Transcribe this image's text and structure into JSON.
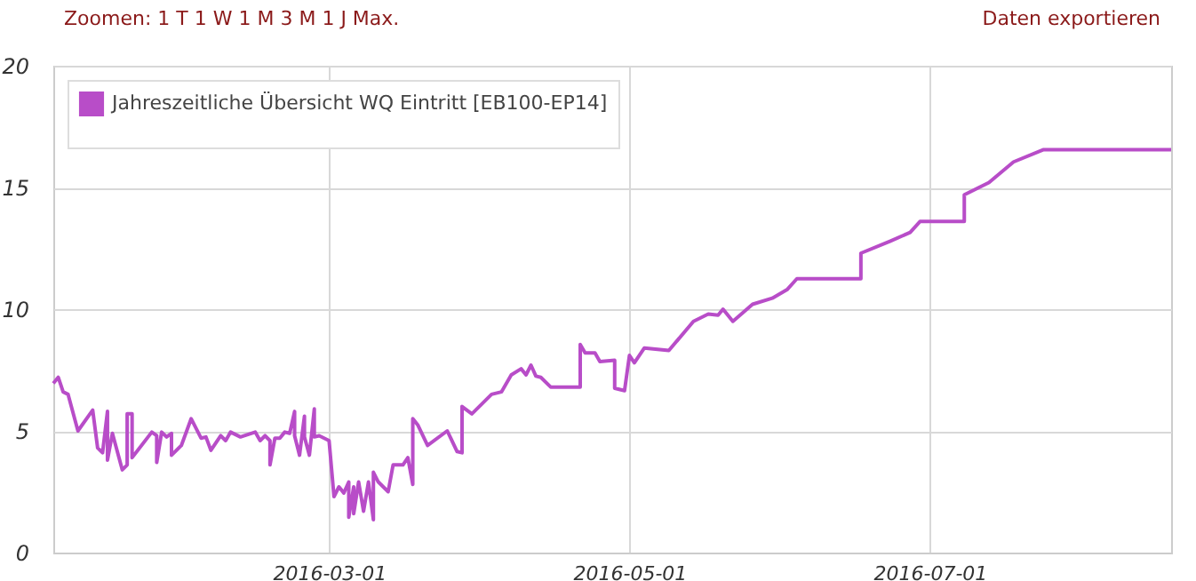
{
  "chart_data": {
    "type": "line",
    "annotations": [
      "Zoomen: 1 T 1 W 1 M 3 M 1 J Max.",
      "Daten exportieren"
    ],
    "x": [
      "2016-01-05",
      "2016-01-06",
      "2016-01-07",
      "2016-01-08",
      "2016-01-10",
      "2016-01-13",
      "2016-01-14",
      "2016-01-15",
      "2016-01-16",
      "2016-01-16",
      "2016-01-17",
      "2016-01-19",
      "2016-01-20",
      "2016-01-20",
      "2016-01-21",
      "2016-01-21",
      "2016-01-25",
      "2016-01-26",
      "2016-01-26",
      "2016-01-27",
      "2016-01-28",
      "2016-01-29",
      "2016-01-29",
      "2016-01-31",
      "2016-02-02",
      "2016-02-04",
      "2016-02-05",
      "2016-02-06",
      "2016-02-08",
      "2016-02-09",
      "2016-02-10",
      "2016-02-12",
      "2016-02-15",
      "2016-02-16",
      "2016-02-17",
      "2016-02-18",
      "2016-02-18",
      "2016-02-19",
      "2016-02-20",
      "2016-02-21",
      "2016-02-22",
      "2016-02-23",
      "2016-02-23",
      "2016-02-24",
      "2016-02-25",
      "2016-02-25",
      "2016-02-26",
      "2016-02-27",
      "2016-02-27",
      "2016-02-28",
      "2016-03-01",
      "2016-03-02",
      "2016-03-03",
      "2016-03-04",
      "2016-03-05",
      "2016-03-05",
      "2016-03-06",
      "2016-03-06",
      "2016-03-07",
      "2016-03-08",
      "2016-03-09",
      "2016-03-10",
      "2016-03-10",
      "2016-03-11",
      "2016-03-13",
      "2016-03-14",
      "2016-03-16",
      "2016-03-17",
      "2016-03-18",
      "2016-03-18",
      "2016-03-19",
      "2016-03-21",
      "2016-03-25",
      "2016-03-27",
      "2016-03-28",
      "2016-03-28",
      "2016-03-30",
      "2016-04-03",
      "2016-04-05",
      "2016-04-07",
      "2016-04-09",
      "2016-04-10",
      "2016-04-11",
      "2016-04-12",
      "2016-04-13",
      "2016-04-15",
      "2016-04-21",
      "2016-04-21",
      "2016-04-22",
      "2016-04-24",
      "2016-04-25",
      "2016-04-28",
      "2016-04-28",
      "2016-04-30",
      "2016-05-01",
      "2016-05-02",
      "2016-05-04",
      "2016-05-09",
      "2016-05-14",
      "2016-05-17",
      "2016-05-19",
      "2016-05-20",
      "2016-05-22",
      "2016-05-26",
      "2016-05-30",
      "2016-06-02",
      "2016-06-04",
      "2016-06-17",
      "2016-06-17",
      "2016-06-23",
      "2016-06-27",
      "2016-06-29",
      "2016-07-08",
      "2016-07-08",
      "2016-07-13",
      "2016-07-18",
      "2016-07-24",
      "2016-08-19"
    ],
    "series": [
      {
        "name": "Jahreszeitliche Übersicht WQ Eintritt [EB100-EP14]",
        "color": "#b84dc8",
        "values": [
          6.95,
          7.2,
          6.6,
          6.5,
          5.0,
          5.85,
          4.3,
          4.1,
          5.8,
          3.8,
          4.9,
          3.4,
          3.6,
          5.7,
          5.7,
          3.9,
          4.95,
          4.8,
          3.7,
          4.95,
          4.75,
          4.9,
          4.0,
          4.4,
          5.5,
          4.7,
          4.75,
          4.2,
          4.8,
          4.6,
          4.95,
          4.75,
          4.95,
          4.6,
          4.8,
          4.6,
          3.6,
          4.7,
          4.7,
          4.95,
          4.9,
          5.8,
          4.8,
          4.0,
          5.6,
          4.75,
          4.0,
          5.9,
          4.75,
          4.8,
          4.6,
          2.3,
          2.7,
          2.45,
          2.9,
          1.45,
          2.7,
          1.6,
          2.9,
          1.7,
          2.9,
          1.35,
          3.3,
          2.9,
          2.5,
          3.6,
          3.6,
          3.9,
          2.8,
          5.5,
          5.25,
          4.4,
          5.0,
          4.15,
          4.1,
          6.0,
          5.7,
          6.5,
          6.6,
          7.3,
          7.55,
          7.3,
          7.7,
          7.25,
          7.2,
          6.8,
          6.8,
          8.55,
          8.2,
          8.2,
          7.85,
          7.9,
          6.75,
          6.65,
          8.1,
          7.8,
          8.4,
          8.3,
          9.5,
          9.8,
          9.75,
          10.0,
          9.5,
          10.2,
          10.45,
          10.8,
          11.25,
          11.25,
          12.3,
          12.8,
          13.15,
          13.6,
          13.6,
          14.7,
          15.2,
          16.05,
          16.55,
          16.55
        ]
      }
    ],
    "xlim": [
      "2016-01-05",
      "2016-08-19"
    ],
    "xticks": [
      "2016-03-01",
      "2016-05-01",
      "2016-07-01"
    ],
    "ylim": [
      0,
      20
    ],
    "yticks": [
      0,
      5,
      10,
      15,
      20
    ],
    "grid": true,
    "legend": "top left",
    "marker": "none",
    "line_style": "solid"
  }
}
